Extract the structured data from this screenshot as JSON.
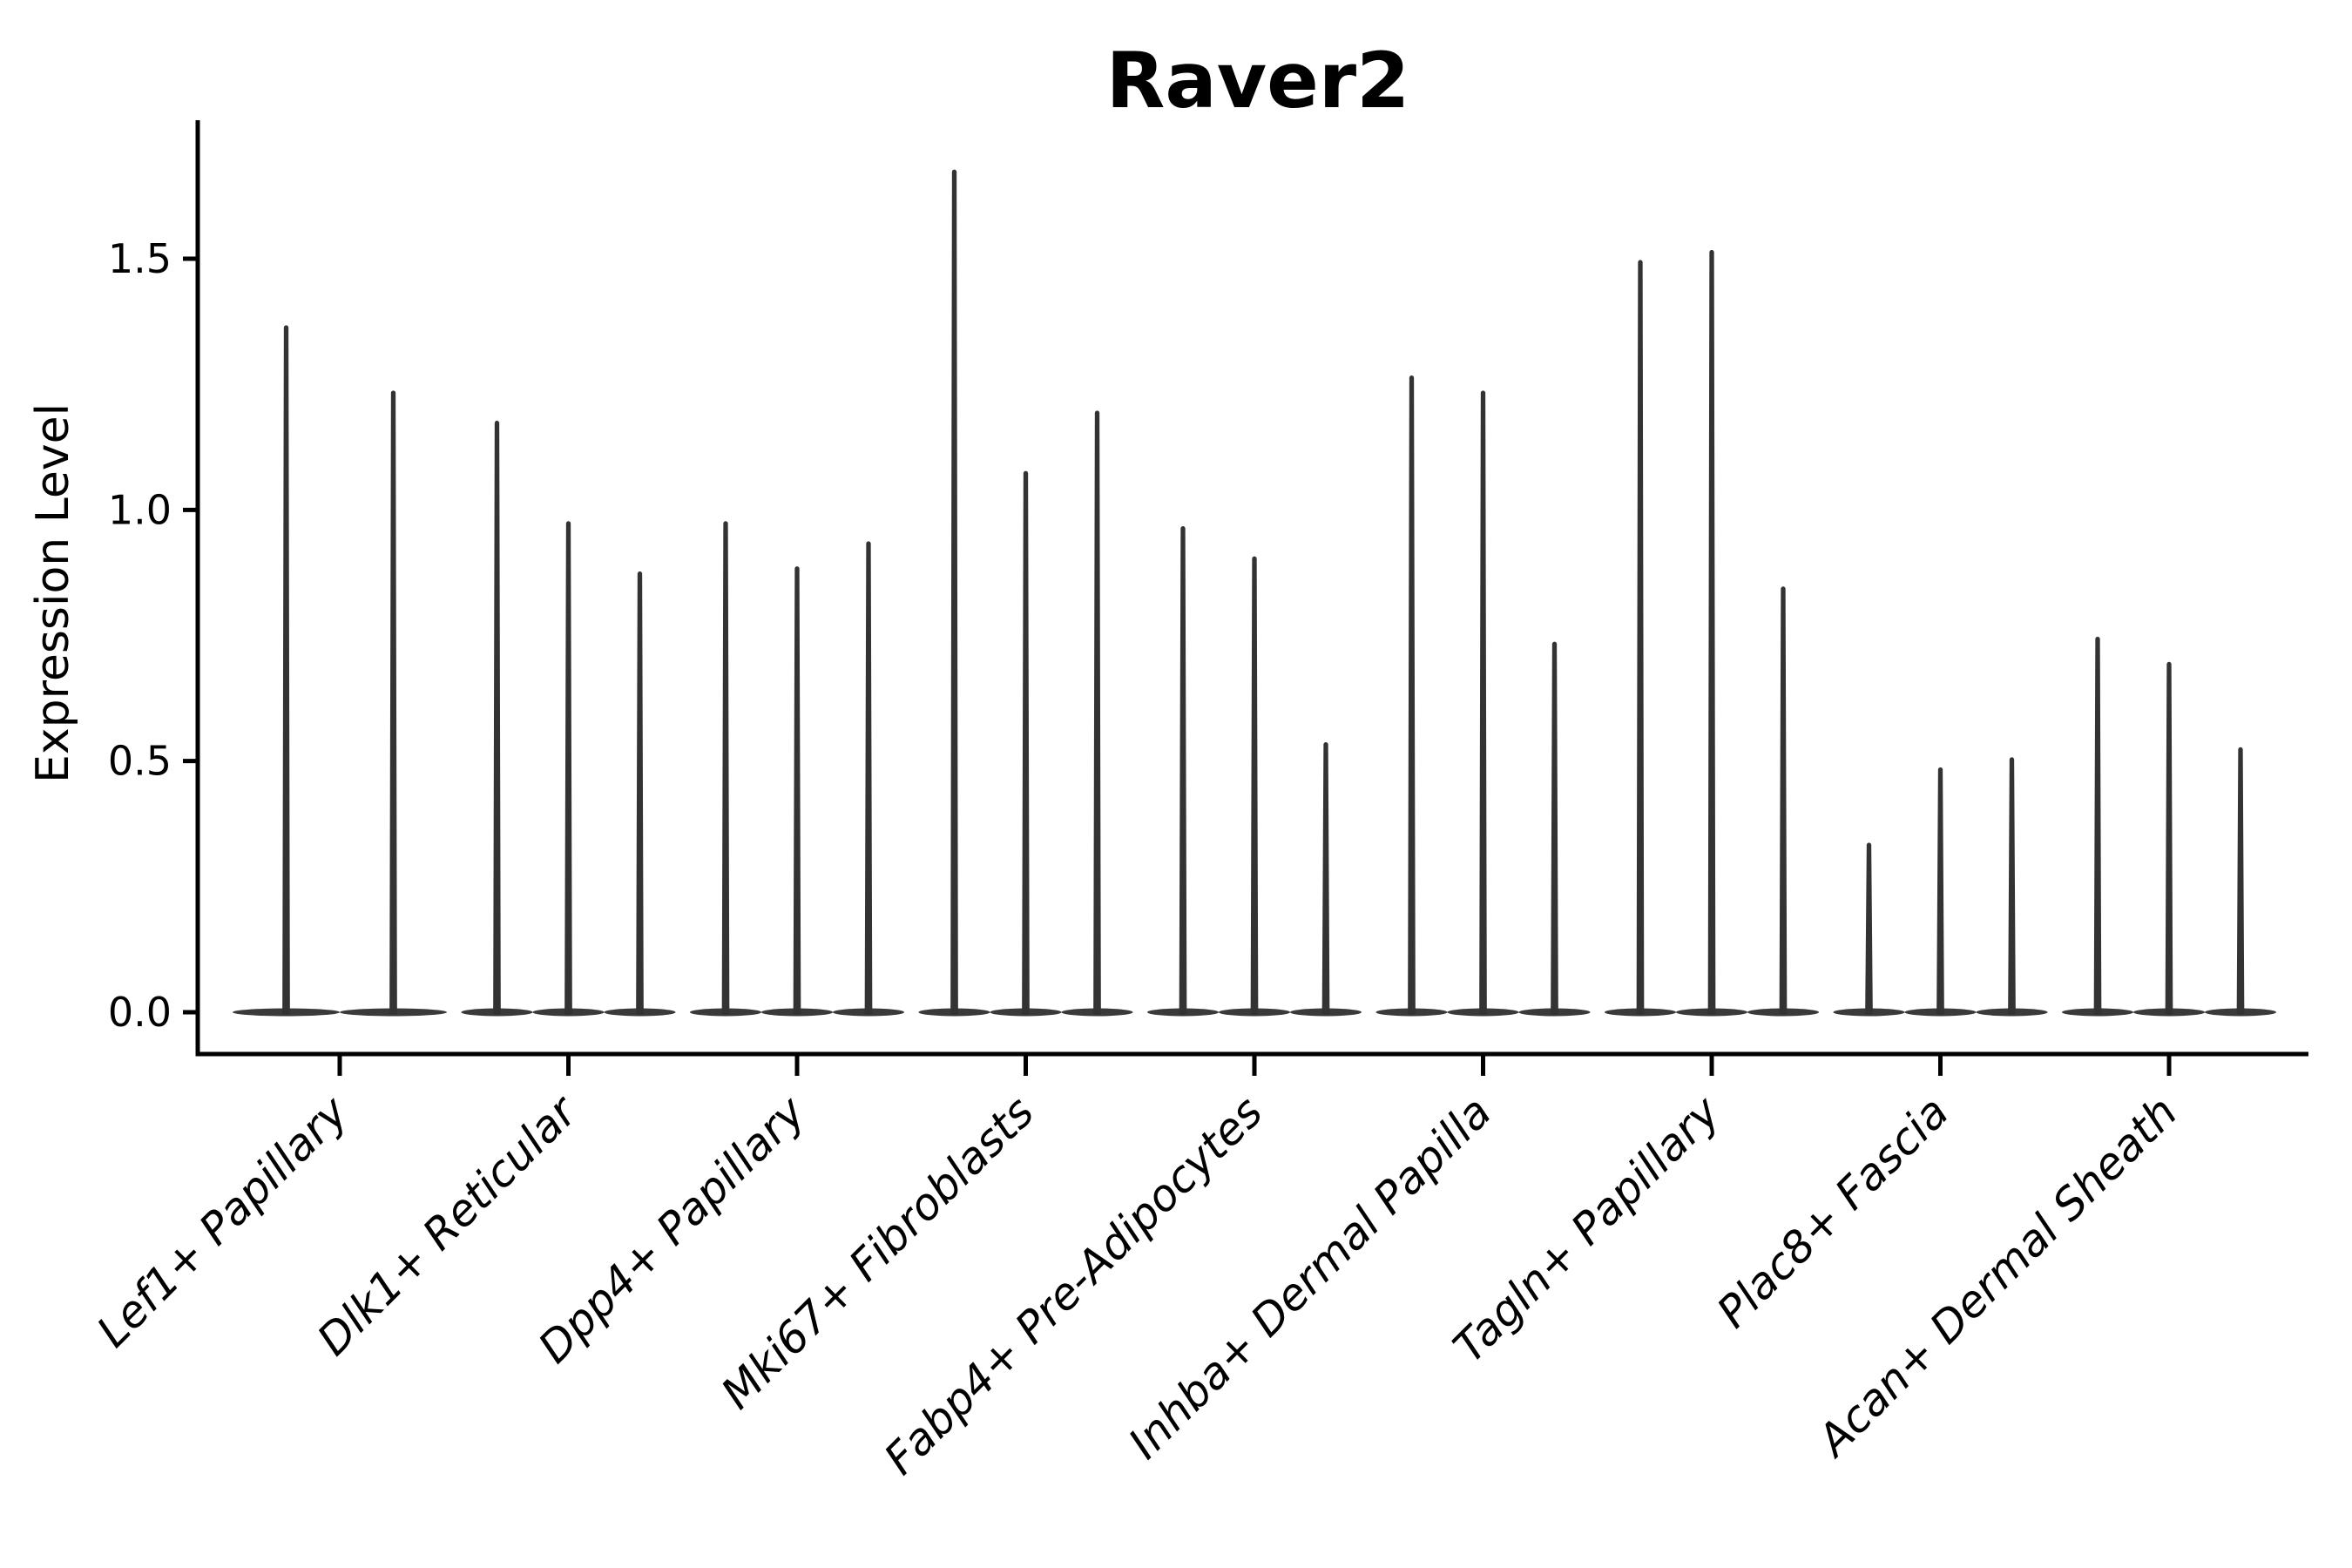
{
  "title": "Raver2",
  "axes": {
    "y_label": "Expression Level",
    "y_tick_labels": [
      "0.0",
      "0.5",
      "1.0",
      "1.5"
    ],
    "x_tick_labels": [
      "Lef1+ Papillary",
      "Dlk1+ Reticular",
      "Dpp4+ Papillary",
      "Mki67+ Fibroblasts",
      "Fabp4+ Pre-Adipocytes",
      "Inhba+ Dermal Papilla",
      "Tagln+ Papillary",
      "Plac8+ Fascia",
      "Acan+ Dermal Sheath"
    ]
  },
  "chart_data": {
    "type": "violin",
    "title": "Raver2",
    "xlabel": "",
    "ylabel": "Expression Level",
    "ylim": [
      -0.08,
      1.77
    ],
    "grid": false,
    "legend": false,
    "y_ticks": [
      0,
      0.5,
      1.0,
      1.5
    ],
    "y_tick_labels": [
      "0.0",
      "0.5",
      "1.0",
      "1.5"
    ],
    "categories": [
      "Lef1+ Papillary",
      "Dlk1+ Reticular",
      "Dpp4+ Papillary",
      "Mki67+ Fibroblasts",
      "Fabp4+ Pre-Adipocytes",
      "Inhba+ Dermal Papilla",
      "Tagln+ Papillary",
      "Plac8+ Fascia",
      "Acan+ Dermal Sheath"
    ],
    "groups": [
      {
        "category": "Lef1+ Papillary",
        "spike_maxima": [
          1.37,
          1.24
        ]
      },
      {
        "category": "Dlk1+ Reticular",
        "spike_maxima": [
          1.18,
          0.98,
          0.88
        ]
      },
      {
        "category": "Dpp4+ Papillary",
        "spike_maxima": [
          0.98,
          0.89,
          0.94
        ]
      },
      {
        "category": "Mki67+ Fibroblasts",
        "spike_maxima": [
          1.68,
          1.08,
          1.2
        ]
      },
      {
        "category": "Fabp4+ Pre-Adipocytes",
        "spike_maxima": [
          0.97,
          0.91,
          0.54
        ]
      },
      {
        "category": "Inhba+ Dermal Papilla",
        "spike_maxima": [
          1.27,
          1.24,
          0.74
        ]
      },
      {
        "category": "Tagln+ Papillary",
        "spike_maxima": [
          1.5,
          1.52,
          0.85
        ]
      },
      {
        "category": "Plac8+ Fascia",
        "spike_maxima": [
          0.34,
          0.49,
          0.51
        ]
      },
      {
        "category": "Acan+ Dermal Sheath",
        "spike_maxima": [
          0.75,
          0.7,
          0.53
        ]
      }
    ],
    "colors": {
      "violin": "#333333",
      "violin_base": "#3a3a3a",
      "axis": "#000000",
      "background": "#ffffff"
    }
  }
}
